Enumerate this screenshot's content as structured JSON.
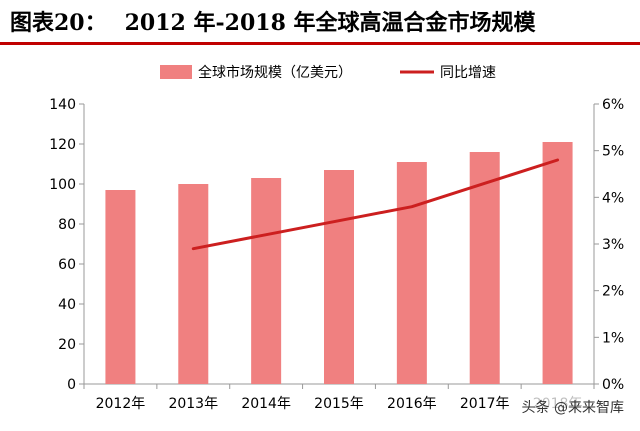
{
  "header": {
    "label": "图表20：",
    "title": "2012 年-2018 年全球高温合金市场规模"
  },
  "watermark": "头条 @来来智库",
  "colors": {
    "bar": "#f08080",
    "line": "#cc1f1f",
    "axis": "#999999",
    "text": "#000000",
    "rule": "#c00000"
  },
  "chart_data": {
    "type": "bar",
    "title": "",
    "categories": [
      "2012年",
      "2013年",
      "2014年",
      "2015年",
      "2016年",
      "2017年",
      "2018年"
    ],
    "series": [
      {
        "name": "全球市场规模（亿美元）",
        "type": "bar",
        "axis": "left",
        "values": [
          97,
          100,
          103,
          107,
          111,
          116,
          121
        ]
      },
      {
        "name": "同比增速",
        "type": "line",
        "axis": "right",
        "values": [
          null,
          0.029,
          0.032,
          0.035,
          0.038,
          0.043,
          0.048
        ]
      }
    ],
    "ylim": [
      0,
      140
    ],
    "yticks": [
      "0",
      "20",
      "40",
      "60",
      "80",
      "100",
      "120",
      "140"
    ],
    "y2lim": [
      0,
      0.06
    ],
    "y2ticks": [
      "0%",
      "1%",
      "2%",
      "3%",
      "4%",
      "5%",
      "6%"
    ],
    "legend": "top",
    "grid": false
  }
}
